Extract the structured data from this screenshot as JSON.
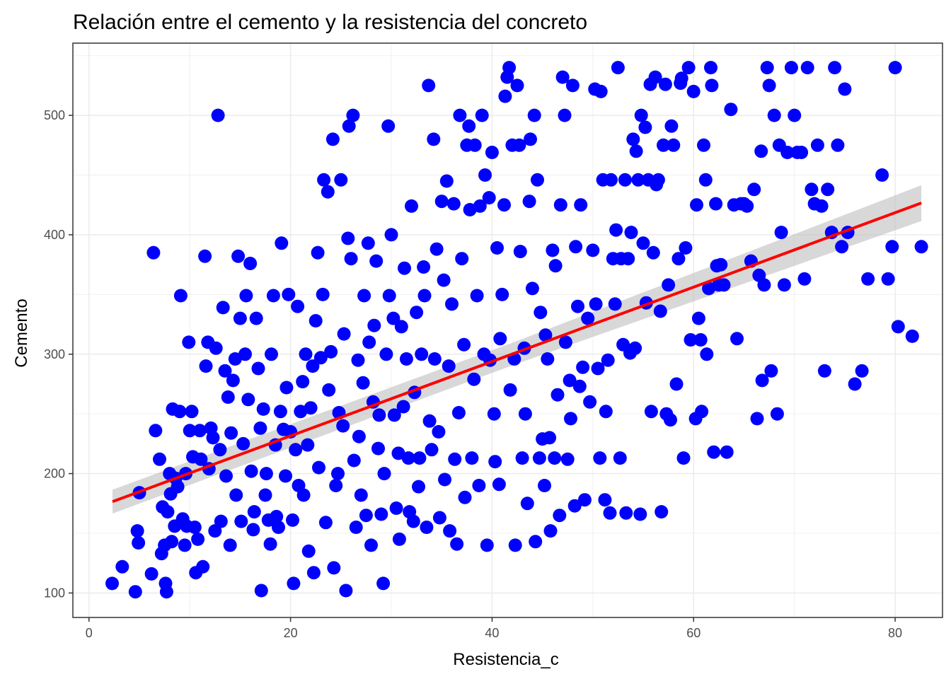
{
  "chart_data": {
    "type": "scatter",
    "title": "Relación entre el cemento y la resistencia del concreto",
    "xlabel": "Resistencia_c",
    "ylabel": "Cemento",
    "xlim": [
      -1.6,
      84.7
    ],
    "ylim": [
      79.5,
      560.5
    ],
    "x_ticks": [
      0,
      20,
      40,
      60,
      80
    ],
    "y_ticks": [
      100,
      200,
      300,
      400,
      500
    ],
    "grid": true,
    "legend": "none",
    "point_color": "#0000ff",
    "fit": {
      "method": "linear regression (lm) with 95% confidence band",
      "color": "#ff0000",
      "band_color": "#bebebe",
      "x": [
        2.33,
        82.6
      ],
      "y": [
        176.5,
        426.6
      ],
      "band_lower": [
        166.5,
        411.5
      ],
      "band_upper": [
        186.5,
        441.5
      ]
    },
    "points": [
      [
        2.3,
        108
      ],
      [
        3.3,
        122
      ],
      [
        4.6,
        101
      ],
      [
        4.8,
        152
      ],
      [
        4.9,
        142
      ],
      [
        5.0,
        184
      ],
      [
        6.2,
        116
      ],
      [
        6.4,
        385
      ],
      [
        6.6,
        236
      ],
      [
        7.0,
        212
      ],
      [
        7.2,
        133
      ],
      [
        7.3,
        172
      ],
      [
        7.5,
        140
      ],
      [
        7.6,
        108
      ],
      [
        7.7,
        101
      ],
      [
        7.8,
        168
      ],
      [
        8.0,
        200
      ],
      [
        8.1,
        183
      ],
      [
        8.2,
        143
      ],
      [
        8.3,
        254
      ],
      [
        8.5,
        156
      ],
      [
        8.6,
        196
      ],
      [
        8.8,
        189
      ],
      [
        9.0,
        252
      ],
      [
        9.1,
        349
      ],
      [
        9.3,
        162
      ],
      [
        9.5,
        140
      ],
      [
        9.6,
        200
      ],
      [
        9.7,
        156
      ],
      [
        9.9,
        310
      ],
      [
        10.0,
        236
      ],
      [
        10.2,
        252
      ],
      [
        10.3,
        214
      ],
      [
        10.5,
        155
      ],
      [
        10.6,
        117
      ],
      [
        10.8,
        145
      ],
      [
        11.0,
        236
      ],
      [
        11.1,
        212
      ],
      [
        11.3,
        122
      ],
      [
        11.5,
        382
      ],
      [
        11.6,
        290
      ],
      [
        11.8,
        310
      ],
      [
        11.9,
        204
      ],
      [
        12.1,
        238
      ],
      [
        12.3,
        230
      ],
      [
        12.5,
        152
      ],
      [
        12.6,
        305
      ],
      [
        12.8,
        500
      ],
      [
        13.0,
        220
      ],
      [
        13.1,
        160
      ],
      [
        13.3,
        339
      ],
      [
        13.5,
        286
      ],
      [
        13.6,
        198
      ],
      [
        13.8,
        264
      ],
      [
        14.0,
        140
      ],
      [
        14.1,
        234
      ],
      [
        14.3,
        278
      ],
      [
        14.5,
        296
      ],
      [
        14.6,
        182
      ],
      [
        14.8,
        382
      ],
      [
        15.0,
        330
      ],
      [
        15.1,
        160
      ],
      [
        15.3,
        225
      ],
      [
        15.5,
        300
      ],
      [
        15.6,
        349
      ],
      [
        15.8,
        262
      ],
      [
        16.0,
        376
      ],
      [
        16.1,
        202
      ],
      [
        16.3,
        153
      ],
      [
        16.4,
        168
      ],
      [
        16.6,
        330
      ],
      [
        16.8,
        288
      ],
      [
        17.0,
        238
      ],
      [
        17.1,
        102
      ],
      [
        17.3,
        254
      ],
      [
        17.5,
        182
      ],
      [
        17.6,
        200
      ],
      [
        17.8,
        161
      ],
      [
        18.0,
        141
      ],
      [
        18.1,
        300
      ],
      [
        18.3,
        349
      ],
      [
        18.5,
        224
      ],
      [
        18.6,
        164
      ],
      [
        18.8,
        155
      ],
      [
        19.0,
        252
      ],
      [
        19.1,
        393
      ],
      [
        19.3,
        237
      ],
      [
        19.5,
        198
      ],
      [
        19.6,
        272
      ],
      [
        19.8,
        350
      ],
      [
        20.0,
        235
      ],
      [
        20.2,
        161
      ],
      [
        20.3,
        108
      ],
      [
        20.5,
        220
      ],
      [
        20.7,
        340
      ],
      [
        20.8,
        190
      ],
      [
        21.0,
        252
      ],
      [
        21.2,
        277
      ],
      [
        21.3,
        182
      ],
      [
        21.5,
        300
      ],
      [
        21.7,
        224
      ],
      [
        21.8,
        135
      ],
      [
        22.0,
        255
      ],
      [
        22.2,
        290
      ],
      [
        22.3,
        117
      ],
      [
        22.5,
        328
      ],
      [
        22.7,
        385
      ],
      [
        22.8,
        205
      ],
      [
        23.0,
        297
      ],
      [
        23.2,
        350
      ],
      [
        23.3,
        446
      ],
      [
        23.5,
        159
      ],
      [
        23.7,
        436
      ],
      [
        23.8,
        270
      ],
      [
        24.0,
        302
      ],
      [
        24.2,
        480
      ],
      [
        24.3,
        121
      ],
      [
        24.5,
        190
      ],
      [
        24.7,
        200
      ],
      [
        24.8,
        251
      ],
      [
        25.0,
        446
      ],
      [
        25.2,
        240
      ],
      [
        25.3,
        317
      ],
      [
        25.5,
        102
      ],
      [
        25.7,
        397
      ],
      [
        25.8,
        491
      ],
      [
        26.0,
        380
      ],
      [
        26.2,
        500
      ],
      [
        26.3,
        211
      ],
      [
        26.5,
        155
      ],
      [
        26.7,
        295
      ],
      [
        26.8,
        231
      ],
      [
        27.0,
        182
      ],
      [
        27.2,
        276
      ],
      [
        27.3,
        349
      ],
      [
        27.5,
        165
      ],
      [
        27.7,
        393
      ],
      [
        27.8,
        310
      ],
      [
        28.0,
        140
      ],
      [
        28.2,
        260
      ],
      [
        28.3,
        324
      ],
      [
        28.5,
        378
      ],
      [
        28.7,
        221
      ],
      [
        28.8,
        249
      ],
      [
        29.0,
        166
      ],
      [
        29.2,
        108
      ],
      [
        29.3,
        200
      ],
      [
        29.5,
        300
      ],
      [
        29.7,
        491
      ],
      [
        29.8,
        349
      ],
      [
        30.0,
        400
      ],
      [
        30.2,
        330
      ],
      [
        30.3,
        249
      ],
      [
        30.5,
        171
      ],
      [
        30.7,
        217
      ],
      [
        30.8,
        145
      ],
      [
        31.0,
        323
      ],
      [
        31.2,
        256
      ],
      [
        31.3,
        372
      ],
      [
        31.5,
        296
      ],
      [
        31.7,
        213
      ],
      [
        31.8,
        168
      ],
      [
        32.0,
        424
      ],
      [
        32.2,
        160
      ],
      [
        32.3,
        268
      ],
      [
        32.5,
        335
      ],
      [
        32.7,
        189
      ],
      [
        32.8,
        213
      ],
      [
        33.0,
        300
      ],
      [
        33.2,
        373
      ],
      [
        33.3,
        349
      ],
      [
        33.5,
        155
      ],
      [
        33.7,
        525
      ],
      [
        33.8,
        244
      ],
      [
        34.0,
        220
      ],
      [
        34.2,
        480
      ],
      [
        34.3,
        296
      ],
      [
        34.5,
        388
      ],
      [
        34.7,
        235
      ],
      [
        34.8,
        163
      ],
      [
        35.0,
        428
      ],
      [
        35.2,
        362
      ],
      [
        35.3,
        195
      ],
      [
        35.5,
        445
      ],
      [
        35.7,
        290
      ],
      [
        35.8,
        152
      ],
      [
        36.0,
        342
      ],
      [
        36.2,
        426
      ],
      [
        36.3,
        212
      ],
      [
        36.5,
        141
      ],
      [
        36.7,
        251
      ],
      [
        36.8,
        500
      ],
      [
        37.0,
        380
      ],
      [
        37.2,
        308
      ],
      [
        37.3,
        180
      ],
      [
        37.5,
        475
      ],
      [
        37.7,
        491
      ],
      [
        37.8,
        421
      ],
      [
        38.0,
        213
      ],
      [
        38.2,
        279
      ],
      [
        38.3,
        475
      ],
      [
        38.5,
        349
      ],
      [
        38.7,
        190
      ],
      [
        38.8,
        424
      ],
      [
        39.0,
        500
      ],
      [
        39.2,
        300
      ],
      [
        39.3,
        450
      ],
      [
        39.5,
        140
      ],
      [
        39.7,
        431
      ],
      [
        39.8,
        295
      ],
      [
        40.0,
        469
      ],
      [
        40.2,
        250
      ],
      [
        40.3,
        210
      ],
      [
        40.5,
        389
      ],
      [
        40.7,
        191
      ],
      [
        40.8,
        313
      ],
      [
        41.0,
        350
      ],
      [
        41.2,
        425
      ],
      [
        41.3,
        516
      ],
      [
        41.5,
        532
      ],
      [
        41.7,
        540
      ],
      [
        41.8,
        270
      ],
      [
        42.0,
        475
      ],
      [
        42.2,
        296
      ],
      [
        42.3,
        140
      ],
      [
        42.5,
        525
      ],
      [
        42.7,
        475
      ],
      [
        42.8,
        386
      ],
      [
        43.0,
        213
      ],
      [
        43.2,
        305
      ],
      [
        43.3,
        250
      ],
      [
        43.5,
        175
      ],
      [
        43.7,
        428
      ],
      [
        43.8,
        480
      ],
      [
        44.0,
        355
      ],
      [
        44.2,
        500
      ],
      [
        44.3,
        143
      ],
      [
        44.5,
        446
      ],
      [
        44.7,
        213
      ],
      [
        44.8,
        335
      ],
      [
        45.0,
        229
      ],
      [
        45.2,
        190
      ],
      [
        45.3,
        316
      ],
      [
        45.5,
        296
      ],
      [
        45.7,
        230
      ],
      [
        45.8,
        152
      ],
      [
        46.0,
        387
      ],
      [
        46.2,
        213
      ],
      [
        46.3,
        374
      ],
      [
        46.5,
        266
      ],
      [
        46.7,
        165
      ],
      [
        46.8,
        425
      ],
      [
        47.0,
        532
      ],
      [
        47.2,
        500
      ],
      [
        47.3,
        310
      ],
      [
        47.5,
        212
      ],
      [
        47.7,
        278
      ],
      [
        47.8,
        246
      ],
      [
        48.0,
        525
      ],
      [
        48.2,
        173
      ],
      [
        48.3,
        390
      ],
      [
        48.5,
        340
      ],
      [
        48.7,
        273
      ],
      [
        48.8,
        425
      ],
      [
        49.0,
        289
      ],
      [
        49.2,
        178
      ],
      [
        49.5,
        330
      ],
      [
        49.7,
        260
      ],
      [
        50.0,
        387
      ],
      [
        50.2,
        522
      ],
      [
        50.3,
        342
      ],
      [
        50.5,
        288
      ],
      [
        50.7,
        213
      ],
      [
        50.8,
        520
      ],
      [
        51.0,
        446
      ],
      [
        51.2,
        178
      ],
      [
        51.3,
        252
      ],
      [
        51.5,
        295
      ],
      [
        51.7,
        167
      ],
      [
        51.8,
        446
      ],
      [
        52.0,
        380
      ],
      [
        52.2,
        342
      ],
      [
        52.3,
        404
      ],
      [
        52.5,
        540
      ],
      [
        52.7,
        213
      ],
      [
        52.8,
        380
      ],
      [
        53.0,
        308
      ],
      [
        53.2,
        446
      ],
      [
        53.3,
        167
      ],
      [
        53.5,
        380
      ],
      [
        53.7,
        301
      ],
      [
        53.8,
        402
      ],
      [
        54.0,
        480
      ],
      [
        54.2,
        305
      ],
      [
        54.3,
        470
      ],
      [
        54.5,
        446
      ],
      [
        54.7,
        166
      ],
      [
        54.8,
        500
      ],
      [
        55.0,
        393
      ],
      [
        55.2,
        490
      ],
      [
        55.3,
        343
      ],
      [
        55.5,
        446
      ],
      [
        55.7,
        526
      ],
      [
        55.8,
        252
      ],
      [
        56.0,
        385
      ],
      [
        56.2,
        532
      ],
      [
        56.3,
        442
      ],
      [
        56.5,
        446
      ],
      [
        56.7,
        336
      ],
      [
        56.8,
        168
      ],
      [
        57.0,
        475
      ],
      [
        57.2,
        526
      ],
      [
        57.3,
        250
      ],
      [
        57.5,
        358
      ],
      [
        57.7,
        245
      ],
      [
        57.8,
        491
      ],
      [
        58.0,
        475
      ],
      [
        58.3,
        275
      ],
      [
        58.5,
        380
      ],
      [
        58.7,
        527
      ],
      [
        58.8,
        531
      ],
      [
        59.0,
        213
      ],
      [
        59.2,
        389
      ],
      [
        59.5,
        540
      ],
      [
        59.7,
        312
      ],
      [
        60.0,
        520
      ],
      [
        60.2,
        246
      ],
      [
        60.3,
        425
      ],
      [
        60.5,
        330
      ],
      [
        60.7,
        312
      ],
      [
        60.8,
        252
      ],
      [
        61.0,
        475
      ],
      [
        61.2,
        446
      ],
      [
        61.3,
        300
      ],
      [
        61.5,
        355
      ],
      [
        61.7,
        540
      ],
      [
        61.8,
        525
      ],
      [
        62.0,
        218
      ],
      [
        62.2,
        426
      ],
      [
        62.3,
        374
      ],
      [
        62.5,
        358
      ],
      [
        62.7,
        375
      ],
      [
        63.0,
        358
      ],
      [
        63.3,
        218
      ],
      [
        63.7,
        505
      ],
      [
        64.0,
        425
      ],
      [
        64.3,
        313
      ],
      [
        64.7,
        426
      ],
      [
        65.0,
        426
      ],
      [
        65.3,
        424
      ],
      [
        65.7,
        378
      ],
      [
        66.0,
        438
      ],
      [
        66.3,
        246
      ],
      [
        66.5,
        366
      ],
      [
        66.7,
        470
      ],
      [
        66.8,
        278
      ],
      [
        67.0,
        358
      ],
      [
        67.3,
        540
      ],
      [
        67.5,
        525
      ],
      [
        67.7,
        286
      ],
      [
        68.0,
        500
      ],
      [
        68.3,
        250
      ],
      [
        68.5,
        475
      ],
      [
        68.7,
        402
      ],
      [
        69.0,
        358
      ],
      [
        69.3,
        469
      ],
      [
        69.7,
        540
      ],
      [
        70.0,
        500
      ],
      [
        70.3,
        469
      ],
      [
        70.7,
        469
      ],
      [
        71.0,
        363
      ],
      [
        71.3,
        540
      ],
      [
        71.7,
        438
      ],
      [
        72.0,
        426
      ],
      [
        72.3,
        475
      ],
      [
        72.7,
        424
      ],
      [
        73.0,
        286
      ],
      [
        73.3,
        438
      ],
      [
        73.7,
        402
      ],
      [
        74.0,
        540
      ],
      [
        74.3,
        475
      ],
      [
        74.7,
        390
      ],
      [
        75.0,
        522
      ],
      [
        75.3,
        402
      ],
      [
        76.0,
        275
      ],
      [
        76.7,
        286
      ],
      [
        77.3,
        363
      ],
      [
        78.7,
        450
      ],
      [
        79.3,
        363
      ],
      [
        79.7,
        390
      ],
      [
        80.0,
        540
      ],
      [
        80.3,
        323
      ],
      [
        81.7,
        315
      ],
      [
        82.6,
        390
      ]
    ]
  }
}
